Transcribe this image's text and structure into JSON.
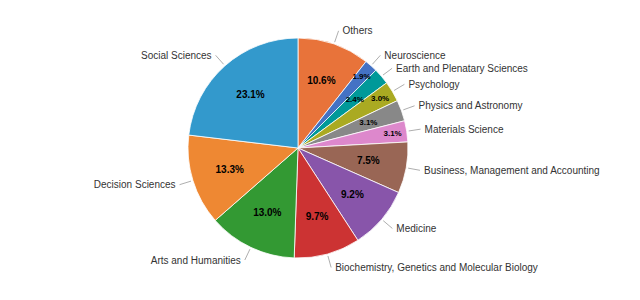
{
  "chart_data": {
    "type": "pie",
    "categories": [
      "Others",
      "Neuroscience",
      "Earth and Plenatary Sciences",
      "Psychology",
      "Physics and Astronomy",
      "Materials Science",
      "Business, Management and Accounting",
      "Medicine",
      "Biochemistry, Genetics and Molecular Biology",
      "Arts and Humanities",
      "Decision Sciences",
      "Social Sciences"
    ],
    "values": [
      10.6,
      1.9,
      2.4,
      3.0,
      3.1,
      3.1,
      7.5,
      9.2,
      9.7,
      13.0,
      13.3,
      23.1
    ],
    "value_labels": [
      "10.6%",
      "1.9%",
      "2.4%",
      "3.0%",
      "3.1%",
      "3.1%",
      "7.5%",
      "9.2%",
      "9.7%",
      "13.0%",
      "13.3%",
      "23.1%"
    ],
    "colors": [
      "#E8733A",
      "#4472C4",
      "#009999",
      "#AAAA22",
      "#888888",
      "#DD88CC",
      "#996655",
      "#8855AA",
      "#CC3333",
      "#339933",
      "#EE8833",
      "#3399CC"
    ],
    "data_labels": true
  }
}
